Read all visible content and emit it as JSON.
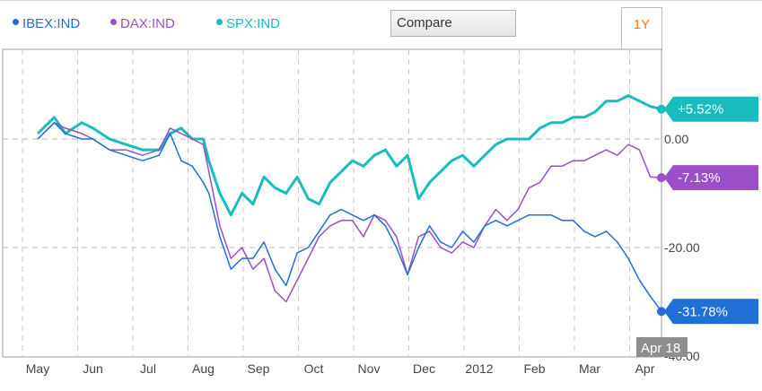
{
  "legend": [
    {
      "label": "IBEX:IND",
      "color": "#1f6fd6"
    },
    {
      "label": "DAX:IND",
      "color": "#9a4fc8"
    },
    {
      "label": "SPX:IND",
      "color": "#17bcbc"
    }
  ],
  "compare_label": "Compare",
  "range_label": "1Y",
  "hover_date_label": "Apr 18",
  "chart_data": {
    "type": "line",
    "x_tick_labels": [
      "May",
      "Jun",
      "Jul",
      "Aug",
      "Sep",
      "Oct",
      "Nov",
      "Dec",
      "2012",
      "Feb",
      "Mar",
      "Apr"
    ],
    "y_tick_labels": [
      "0.00",
      "-20.00",
      "-40.00"
    ],
    "ylim": [
      -40,
      16
    ],
    "grid": true,
    "series": [
      {
        "name": "SPX:IND",
        "color": "#17bcbc",
        "end_label": "+5.52%",
        "points": [
          [
            0,
            1
          ],
          [
            0.3,
            4
          ],
          [
            0.5,
            1
          ],
          [
            0.8,
            3
          ],
          [
            1,
            2
          ],
          [
            1.3,
            0
          ],
          [
            1.6,
            -1
          ],
          [
            1.9,
            -2
          ],
          [
            2.2,
            -2
          ],
          [
            2.4,
            1
          ],
          [
            2.6,
            2
          ],
          [
            2.8,
            0
          ],
          [
            3,
            0
          ],
          [
            3.1,
            -4
          ],
          [
            3.3,
            -10
          ],
          [
            3.5,
            -14
          ],
          [
            3.7,
            -10
          ],
          [
            3.9,
            -12
          ],
          [
            4.1,
            -7
          ],
          [
            4.3,
            -9
          ],
          [
            4.5,
            -10
          ],
          [
            4.7,
            -7
          ],
          [
            4.9,
            -11
          ],
          [
            5.1,
            -12
          ],
          [
            5.3,
            -8
          ],
          [
            5.5,
            -6
          ],
          [
            5.7,
            -4
          ],
          [
            5.9,
            -5
          ],
          [
            6.1,
            -3
          ],
          [
            6.3,
            -2
          ],
          [
            6.5,
            -5
          ],
          [
            6.7,
            -3
          ],
          [
            6.9,
            -11
          ],
          [
            7.1,
            -8
          ],
          [
            7.3,
            -6
          ],
          [
            7.5,
            -4
          ],
          [
            7.7,
            -3
          ],
          [
            7.9,
            -5
          ],
          [
            8.1,
            -3
          ],
          [
            8.3,
            -1
          ],
          [
            8.5,
            0
          ],
          [
            8.7,
            0
          ],
          [
            8.9,
            0
          ],
          [
            9.1,
            2
          ],
          [
            9.3,
            3
          ],
          [
            9.5,
            3
          ],
          [
            9.7,
            4
          ],
          [
            9.9,
            4
          ],
          [
            10.1,
            5
          ],
          [
            10.3,
            7
          ],
          [
            10.5,
            7
          ],
          [
            10.7,
            8
          ],
          [
            10.9,
            7
          ],
          [
            11.1,
            6
          ],
          [
            11.3,
            5.5
          ]
        ]
      },
      {
        "name": "DAX:IND",
        "color": "#9a4fc8",
        "end_label": "-7.13%",
        "points": [
          [
            0,
            0
          ],
          [
            0.3,
            3
          ],
          [
            0.5,
            2
          ],
          [
            0.8,
            1
          ],
          [
            1,
            0
          ],
          [
            1.3,
            -2
          ],
          [
            1.6,
            -2
          ],
          [
            1.9,
            -3
          ],
          [
            2.2,
            -2
          ],
          [
            2.4,
            2
          ],
          [
            2.6,
            1
          ],
          [
            2.8,
            0
          ],
          [
            3,
            -1
          ],
          [
            3.1,
            -6
          ],
          [
            3.3,
            -16
          ],
          [
            3.5,
            -22
          ],
          [
            3.7,
            -20
          ],
          [
            3.9,
            -24
          ],
          [
            4.1,
            -22
          ],
          [
            4.3,
            -28
          ],
          [
            4.5,
            -30
          ],
          [
            4.7,
            -26
          ],
          [
            4.9,
            -22
          ],
          [
            5.1,
            -18
          ],
          [
            5.3,
            -16
          ],
          [
            5.5,
            -15
          ],
          [
            5.7,
            -15
          ],
          [
            5.9,
            -18
          ],
          [
            6.1,
            -14
          ],
          [
            6.3,
            -15
          ],
          [
            6.5,
            -18
          ],
          [
            6.7,
            -25
          ],
          [
            6.9,
            -18
          ],
          [
            7.1,
            -17
          ],
          [
            7.3,
            -20
          ],
          [
            7.5,
            -21
          ],
          [
            7.7,
            -19
          ],
          [
            7.9,
            -20
          ],
          [
            8.1,
            -16
          ],
          [
            8.3,
            -13
          ],
          [
            8.5,
            -15
          ],
          [
            8.7,
            -13
          ],
          [
            8.9,
            -9
          ],
          [
            9.1,
            -8
          ],
          [
            9.3,
            -5
          ],
          [
            9.5,
            -5
          ],
          [
            9.7,
            -4
          ],
          [
            9.9,
            -4
          ],
          [
            10.1,
            -3
          ],
          [
            10.3,
            -2
          ],
          [
            10.5,
            -3
          ],
          [
            10.7,
            -1
          ],
          [
            10.9,
            -2
          ],
          [
            11.1,
            -7
          ],
          [
            11.3,
            -7.13
          ]
        ]
      },
      {
        "name": "IBEX:IND",
        "color": "#1f6fd6",
        "end_label": "-31.78%",
        "points": [
          [
            0,
            0
          ],
          [
            0.3,
            3
          ],
          [
            0.5,
            1
          ],
          [
            0.8,
            0
          ],
          [
            1,
            0
          ],
          [
            1.3,
            -2
          ],
          [
            1.6,
            -3
          ],
          [
            1.9,
            -4
          ],
          [
            2.2,
            -3
          ],
          [
            2.4,
            1
          ],
          [
            2.6,
            -4
          ],
          [
            2.8,
            -5
          ],
          [
            3,
            -8
          ],
          [
            3.1,
            -10
          ],
          [
            3.3,
            -18
          ],
          [
            3.5,
            -24
          ],
          [
            3.7,
            -22
          ],
          [
            3.9,
            -22
          ],
          [
            4.1,
            -19
          ],
          [
            4.3,
            -24
          ],
          [
            4.5,
            -27
          ],
          [
            4.7,
            -21
          ],
          [
            4.9,
            -20
          ],
          [
            5.1,
            -17
          ],
          [
            5.3,
            -14
          ],
          [
            5.5,
            -13
          ],
          [
            5.7,
            -14
          ],
          [
            5.9,
            -15
          ],
          [
            6.1,
            -14
          ],
          [
            6.3,
            -16
          ],
          [
            6.5,
            -20
          ],
          [
            6.7,
            -25
          ],
          [
            6.9,
            -20
          ],
          [
            7.1,
            -16
          ],
          [
            7.3,
            -19
          ],
          [
            7.5,
            -20
          ],
          [
            7.7,
            -17
          ],
          [
            7.9,
            -19
          ],
          [
            8.1,
            -16
          ],
          [
            8.3,
            -15
          ],
          [
            8.5,
            -16
          ],
          [
            8.7,
            -15
          ],
          [
            8.9,
            -14
          ],
          [
            9.1,
            -14
          ],
          [
            9.3,
            -14
          ],
          [
            9.5,
            -15
          ],
          [
            9.7,
            -15
          ],
          [
            9.9,
            -17
          ],
          [
            10.1,
            -18
          ],
          [
            10.3,
            -17
          ],
          [
            10.5,
            -19
          ],
          [
            10.7,
            -22
          ],
          [
            10.9,
            -26
          ],
          [
            11.1,
            -29
          ],
          [
            11.3,
            -31.78
          ]
        ]
      }
    ]
  }
}
